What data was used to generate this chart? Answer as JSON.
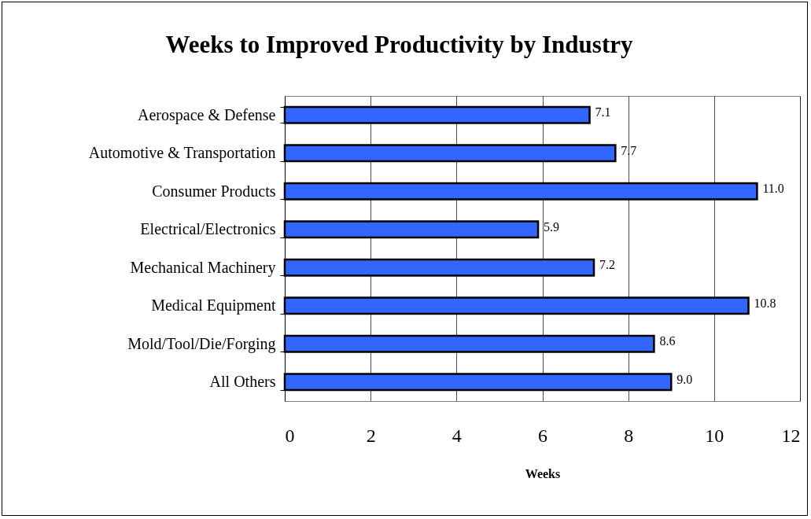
{
  "chart_data": {
    "type": "bar",
    "orientation": "horizontal",
    "title": "Weeks to Improved Productivity by Industry",
    "xlabel": "Weeks",
    "categories": [
      "Aerospace & Defense",
      "Automotive & Transportation",
      "Consumer Products",
      "Electrical/Electronics",
      "Mechanical Machinery",
      "Medical Equipment",
      "Mold/Tool/Die/Forging",
      "All Others"
    ],
    "values": [
      7.1,
      7.7,
      11.0,
      5.9,
      7.2,
      10.8,
      8.6,
      9.0
    ],
    "value_labels": [
      "7.1",
      "7.7",
      "11.0",
      "5.9",
      "7.2",
      "10.8",
      "8.6",
      "9.0"
    ],
    "color": "#3366ff",
    "xlim": [
      0,
      12
    ],
    "xticks": [
      0,
      2,
      4,
      6,
      8,
      10,
      12
    ],
    "grid": "x"
  }
}
